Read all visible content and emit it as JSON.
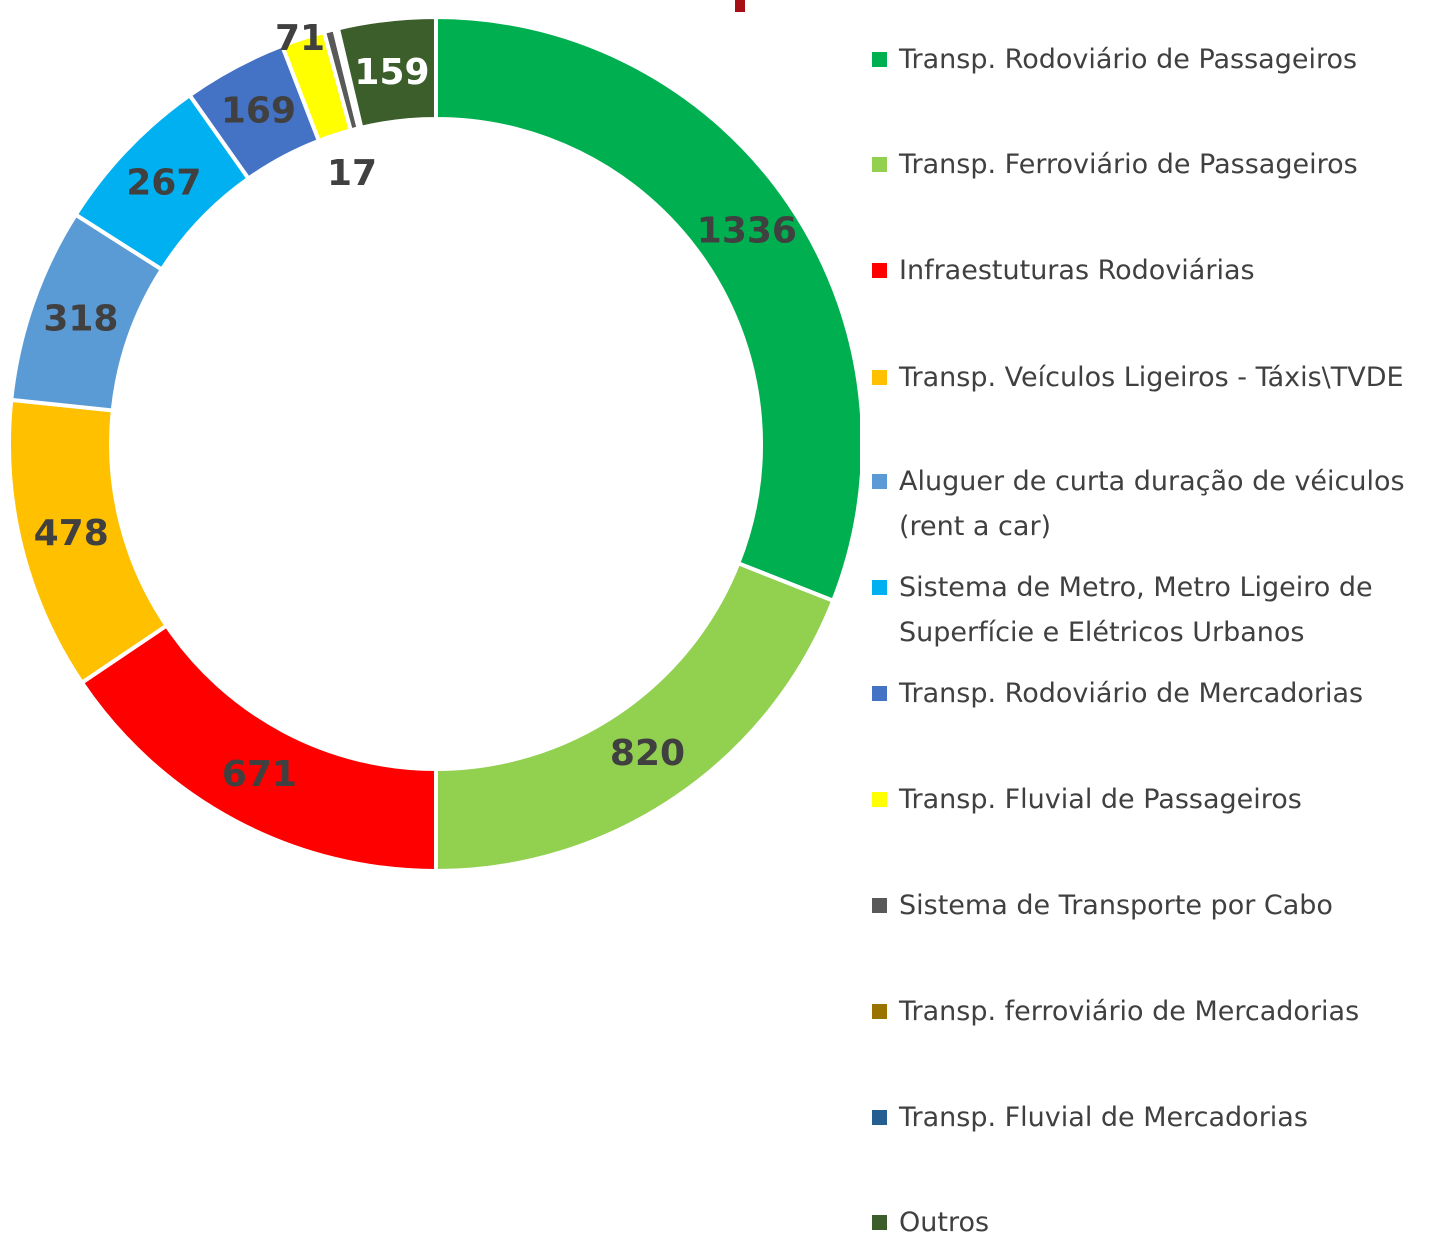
{
  "chart_data": {
    "type": "donut",
    "categories": [
      "Transp. Rodoviário de Passageiros",
      "Transp. Ferroviário de Passageiros",
      "Infraestuturas Rodoviárias",
      "Transp. Veículos Ligeiros - Táxis\\TVDE",
      "Aluguer de curta duração de véiculos (rent a car)",
      "Sistema de Metro, Metro Ligeiro de Superfície e Elétricos Urbanos",
      "Transp. Rodoviário de Mercadorias",
      "Transp. Fluvial de Passageiros",
      "Sistema de Transporte por Cabo",
      "Transp. ferroviário de Mercadorias",
      "Transp. Fluvial de Mercadorias",
      "Outros"
    ],
    "values": [
      1336,
      820,
      671,
      478,
      318,
      267,
      169,
      71,
      17,
      6,
      null,
      159
    ],
    "colors": [
      "#00b050",
      "#92d050",
      "#ff0000",
      "#ffc000",
      "#5b9bd5",
      "#00b0f0",
      "#4472c4",
      "#ffff00",
      "#595959",
      "#997300",
      "#255e91",
      "#3b5e2b"
    ],
    "legend": "right"
  }
}
